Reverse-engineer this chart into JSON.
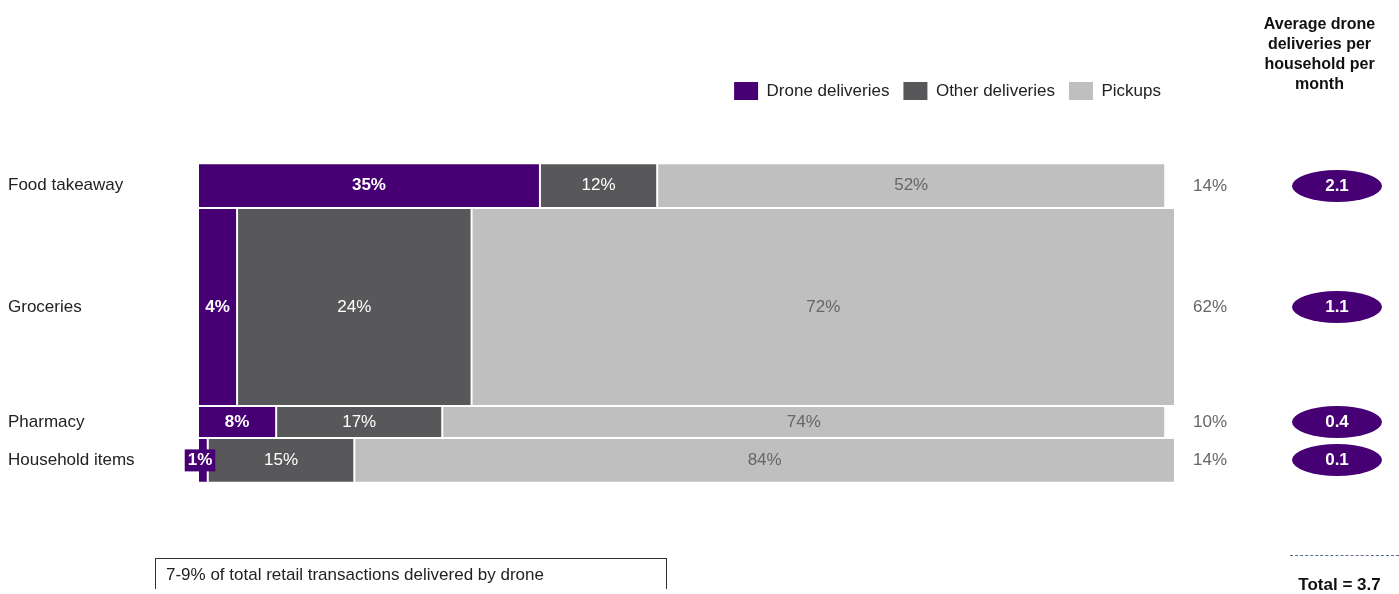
{
  "chart_data": [
    {
      "type": "bar",
      "orientation": "horizontal",
      "stacked": true,
      "legend": "top right",
      "categories": [
        "Food takeaway",
        "Groceries",
        "Pharmacy",
        "Household items"
      ],
      "series": [
        {
          "name": "Drone deliveries",
          "color": "#460073",
          "values": [
            35,
            4,
            8,
            1
          ],
          "value_labels": [
            "35%",
            "4%",
            "8%",
            "1%"
          ]
        },
        {
          "name": "Other deliveries",
          "color": "#58585a",
          "values": [
            12,
            24,
            17,
            15
          ],
          "value_labels": [
            "12%",
            "24%",
            "17%",
            "15%"
          ]
        },
        {
          "name": "Pickups",
          "color": "#bfbfbf",
          "values": [
            52,
            72,
            74,
            84
          ],
          "value_labels": [
            "52%",
            "72%",
            "74%",
            "84%"
          ]
        }
      ],
      "annotations": [
        "7-9% of total retail transactions delivered by drone"
      ]
    },
    {
      "type": "other",
      "values": [
        14,
        62,
        10,
        14
      ],
      "value_labels": [
        "14%",
        "62%",
        "10%",
        "14%"
      ]
    },
    {
      "type": "other",
      "title": "Average drone deliveries per household per month",
      "values": [
        2.1,
        1.1,
        0.4,
        0.1
      ],
      "data_labels": true,
      "color": "#460073",
      "annotations": [
        "Total = 3.7"
      ]
    }
  ]
}
